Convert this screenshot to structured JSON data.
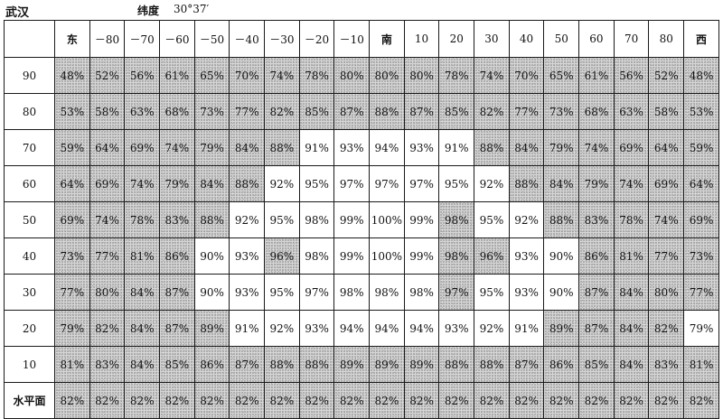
{
  "header": {
    "city": "武汉",
    "latitude_label": "纬度",
    "latitude_value": "30°37′"
  },
  "table": {
    "corner": "",
    "columns": [
      "东",
      "－80",
      "－70",
      "－60",
      "－50",
      "－40",
      "－30",
      "－20",
      "－10",
      "南",
      "10",
      "20",
      "30",
      "40",
      "50",
      "60",
      "70",
      "80",
      "西"
    ],
    "rows": [
      {
        "label": "90",
        "cells": [
          "48%",
          "52%",
          "56%",
          "61%",
          "65%",
          "70%",
          "74%",
          "78%",
          "80%",
          "80%",
          "80%",
          "78%",
          "74%",
          "70%",
          "65%",
          "61%",
          "56%",
          "52%",
          "48%"
        ],
        "shaded": [
          1,
          1,
          1,
          1,
          1,
          1,
          1,
          1,
          1,
          1,
          1,
          1,
          1,
          1,
          1,
          1,
          1,
          1,
          1
        ]
      },
      {
        "label": "80",
        "cells": [
          "53%",
          "58%",
          "63%",
          "68%",
          "73%",
          "77%",
          "82%",
          "85%",
          "87%",
          "88%",
          "87%",
          "85%",
          "82%",
          "77%",
          "73%",
          "68%",
          "63%",
          "58%",
          "53%"
        ],
        "shaded": [
          1,
          1,
          1,
          1,
          1,
          1,
          1,
          1,
          1,
          1,
          1,
          1,
          1,
          1,
          1,
          1,
          1,
          1,
          1
        ]
      },
      {
        "label": "70",
        "cells": [
          "59%",
          "64%",
          "69%",
          "74%",
          "79%",
          "84%",
          "88%",
          "91%",
          "93%",
          "94%",
          "93%",
          "91%",
          "88%",
          "84%",
          "79%",
          "74%",
          "69%",
          "64%",
          "59%"
        ],
        "shaded": [
          1,
          1,
          1,
          1,
          1,
          1,
          1,
          0,
          0,
          0,
          0,
          0,
          1,
          1,
          1,
          1,
          1,
          1,
          1
        ]
      },
      {
        "label": "60",
        "cells": [
          "64%",
          "69%",
          "74%",
          "79%",
          "84%",
          "88%",
          "92%",
          "95%",
          "97%",
          "97%",
          "97%",
          "95%",
          "92%",
          "88%",
          "84%",
          "79%",
          "74%",
          "69%",
          "64%"
        ],
        "shaded": [
          1,
          1,
          1,
          1,
          1,
          1,
          0,
          0,
          0,
          0,
          0,
          0,
          0,
          1,
          1,
          1,
          1,
          1,
          1
        ]
      },
      {
        "label": "50",
        "cells": [
          "69%",
          "74%",
          "78%",
          "83%",
          "88%",
          "92%",
          "95%",
          "98%",
          "99%",
          "100%",
          "99%",
          "98%",
          "95%",
          "92%",
          "88%",
          "83%",
          "78%",
          "74%",
          "69%"
        ],
        "shaded": [
          1,
          1,
          1,
          1,
          1,
          0,
          0,
          0,
          0,
          0,
          0,
          1,
          0,
          0,
          1,
          1,
          1,
          1,
          1
        ]
      },
      {
        "label": "40",
        "cells": [
          "73%",
          "77%",
          "81%",
          "86%",
          "90%",
          "93%",
          "96%",
          "98%",
          "99%",
          "100%",
          "99%",
          "98%",
          "96%",
          "93%",
          "90%",
          "86%",
          "81%",
          "77%",
          "73%"
        ],
        "shaded": [
          1,
          1,
          1,
          1,
          0,
          0,
          1,
          0,
          0,
          0,
          0,
          1,
          1,
          0,
          0,
          1,
          1,
          1,
          1
        ]
      },
      {
        "label": "30",
        "cells": [
          "77%",
          "80%",
          "84%",
          "87%",
          "90%",
          "93%",
          "95%",
          "97%",
          "98%",
          "98%",
          "98%",
          "97%",
          "95%",
          "93%",
          "90%",
          "87%",
          "84%",
          "80%",
          "77%"
        ],
        "shaded": [
          1,
          1,
          1,
          1,
          0,
          0,
          0,
          0,
          0,
          0,
          0,
          1,
          0,
          0,
          0,
          1,
          1,
          1,
          1
        ]
      },
      {
        "label": "20",
        "cells": [
          "79%",
          "82%",
          "84%",
          "87%",
          "89%",
          "91%",
          "92%",
          "93%",
          "94%",
          "94%",
          "94%",
          "93%",
          "92%",
          "91%",
          "89%",
          "87%",
          "84%",
          "82%",
          "79%"
        ],
        "shaded": [
          1,
          1,
          1,
          1,
          1,
          0,
          0,
          0,
          0,
          0,
          0,
          0,
          0,
          0,
          1,
          1,
          1,
          1,
          0
        ]
      },
      {
        "label": "10",
        "cells": [
          "81%",
          "83%",
          "84%",
          "85%",
          "86%",
          "87%",
          "88%",
          "88%",
          "89%",
          "89%",
          "89%",
          "88%",
          "88%",
          "87%",
          "86%",
          "85%",
          "84%",
          "83%",
          "81%"
        ],
        "shaded": [
          1,
          1,
          1,
          1,
          1,
          1,
          1,
          1,
          1,
          1,
          1,
          1,
          1,
          1,
          1,
          1,
          1,
          1,
          1
        ]
      },
      {
        "label": "水平面",
        "cells": [
          "82%",
          "82%",
          "82%",
          "82%",
          "82%",
          "82%",
          "82%",
          "82%",
          "82%",
          "82%",
          "82%",
          "82%",
          "82%",
          "82%",
          "82%",
          "82%",
          "82%",
          "82%",
          "82%"
        ],
        "shaded": [
          1,
          1,
          1,
          1,
          1,
          1,
          1,
          1,
          1,
          1,
          1,
          1,
          1,
          1,
          1,
          1,
          1,
          1,
          1
        ]
      }
    ]
  }
}
